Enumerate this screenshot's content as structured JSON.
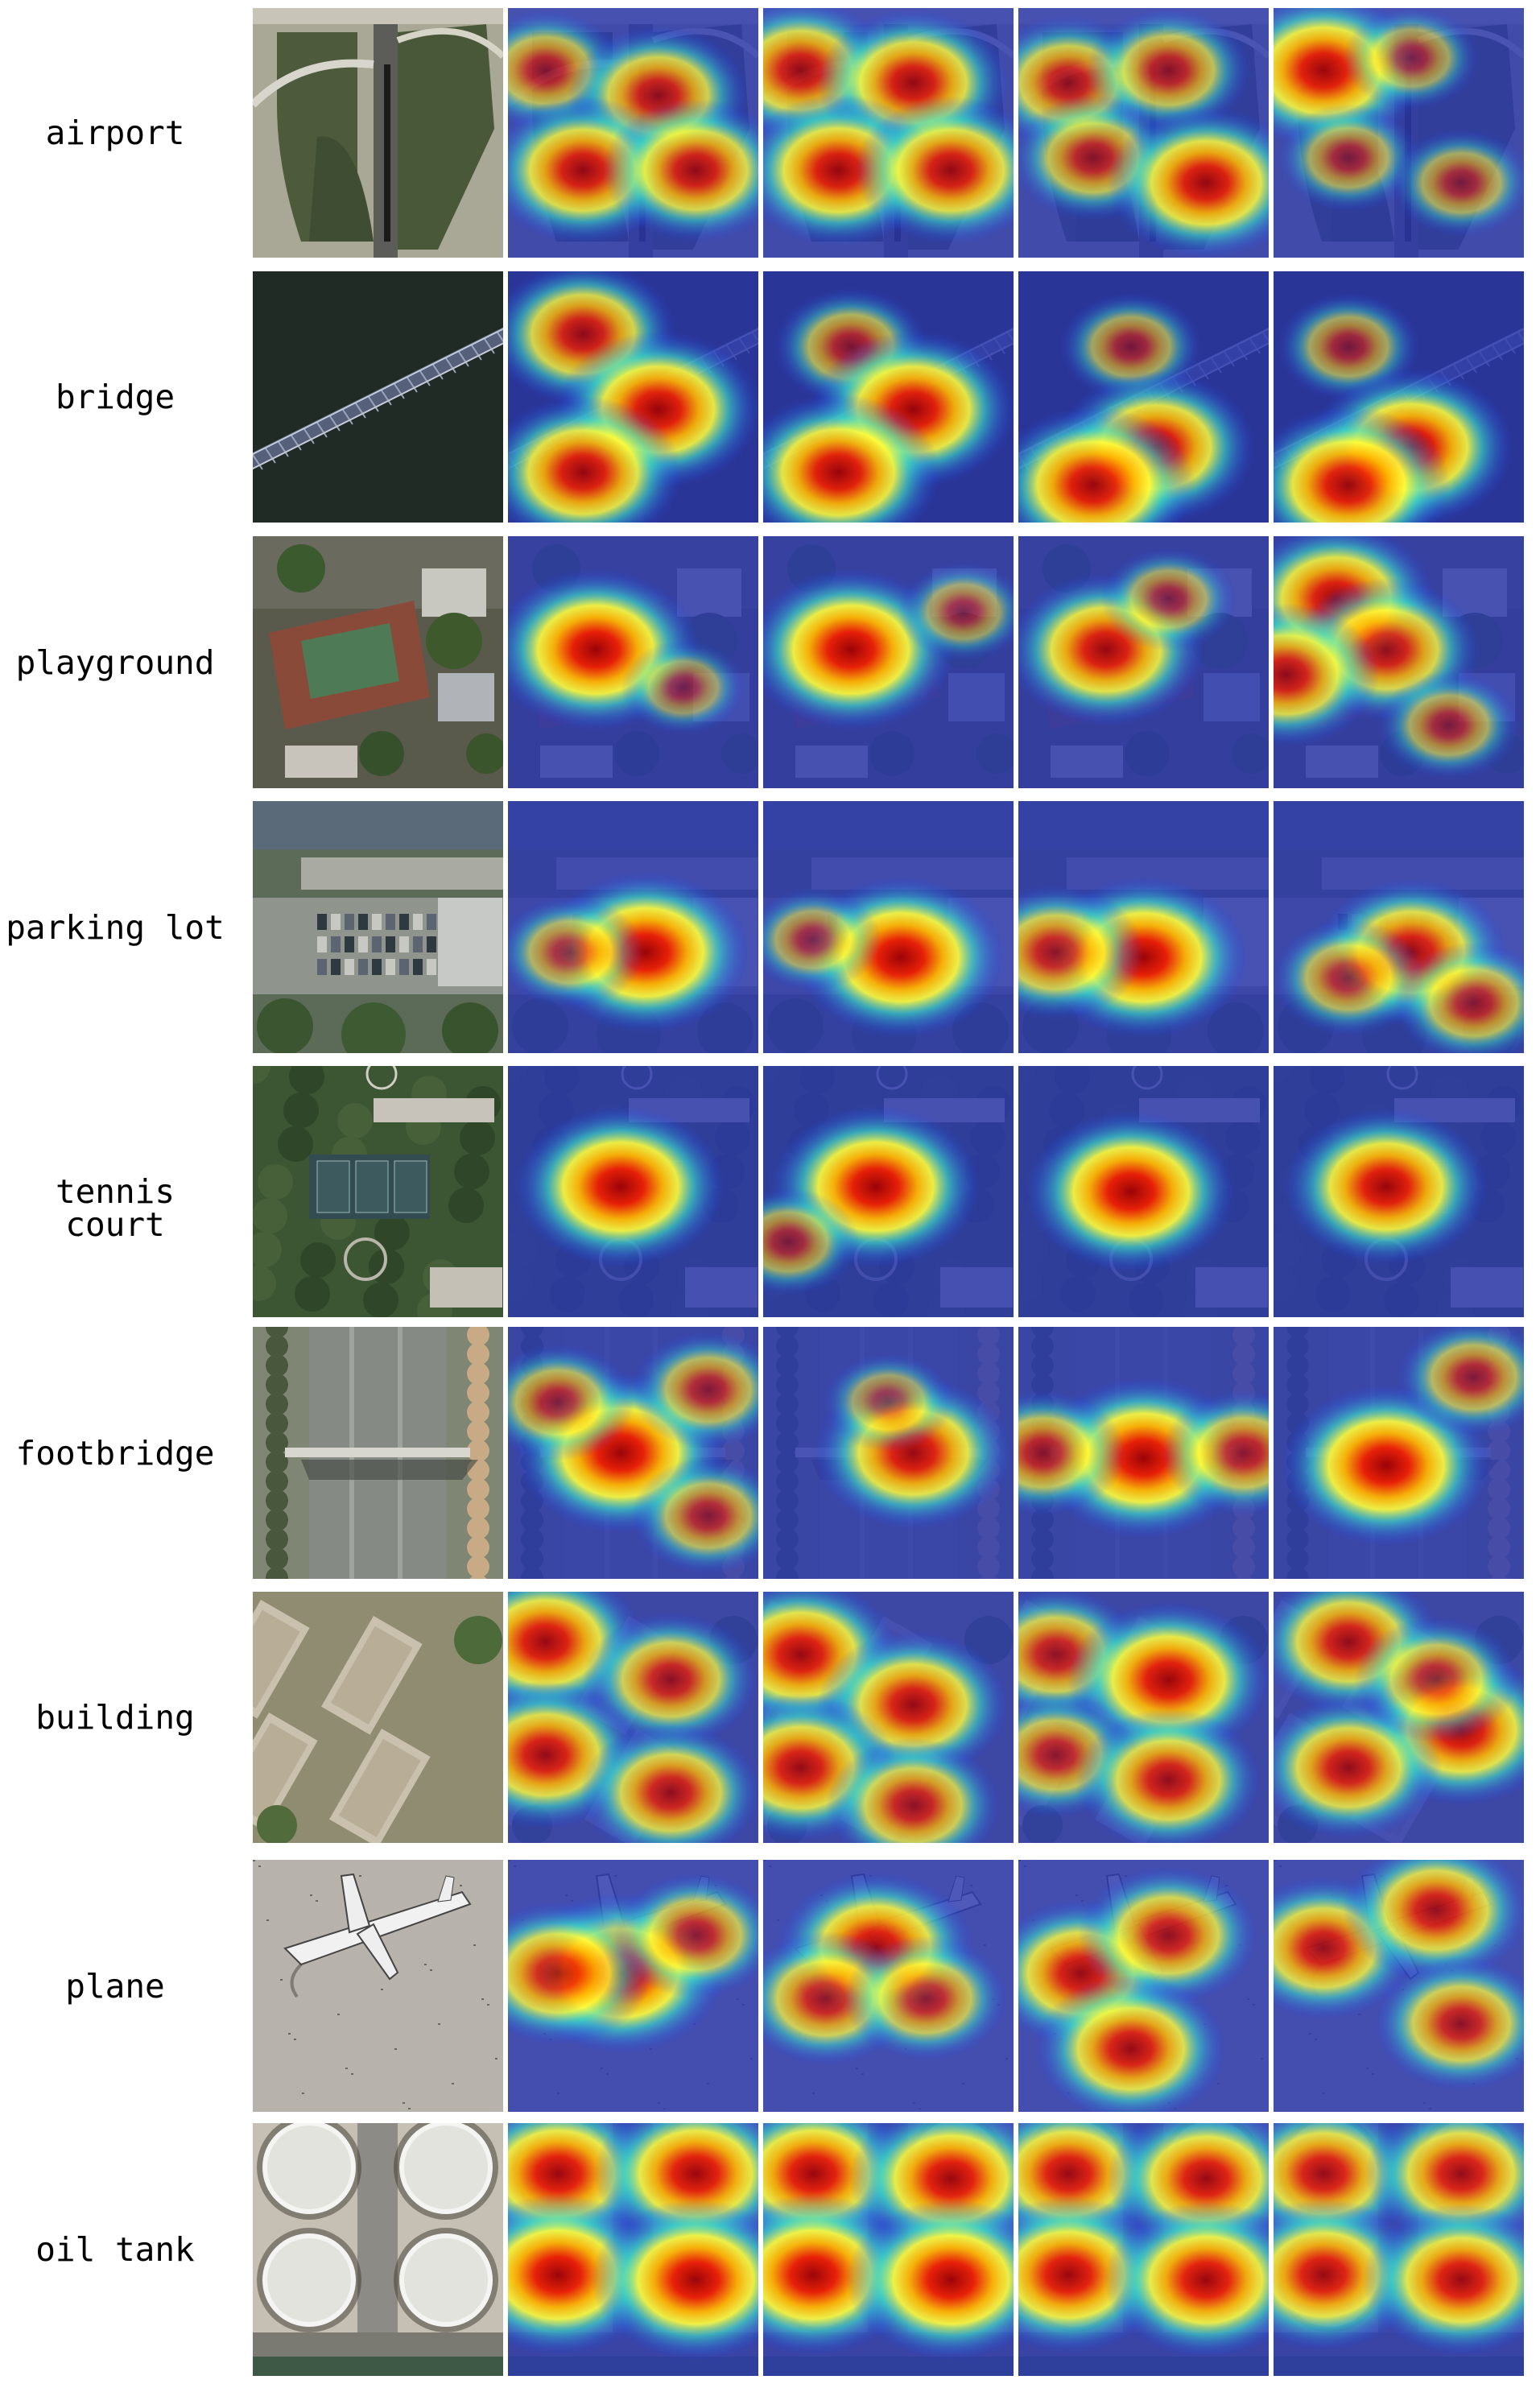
{
  "figure": {
    "rows": [
      {
        "id": "airport",
        "label": "airport",
        "scene": "airport",
        "heat": [
          [
            [
              0.15,
              0.25,
              0.55
            ],
            [
              0.6,
              0.35,
              0.75
            ],
            [
              0.3,
              0.65,
              0.85
            ],
            [
              0.75,
              0.65,
              0.8
            ]
          ],
          [
            [
              0.15,
              0.25,
              0.8
            ],
            [
              0.6,
              0.3,
              0.85
            ],
            [
              0.3,
              0.65,
              0.9
            ],
            [
              0.75,
              0.65,
              0.85
            ]
          ],
          [
            [
              0.2,
              0.3,
              0.7
            ],
            [
              0.6,
              0.25,
              0.6
            ],
            [
              0.3,
              0.6,
              0.6
            ],
            [
              0.75,
              0.7,
              0.9
            ]
          ],
          [
            [
              0.2,
              0.25,
              0.95
            ],
            [
              0.55,
              0.2,
              0.35
            ],
            [
              0.3,
              0.6,
              0.4
            ],
            [
              0.75,
              0.7,
              0.4
            ]
          ]
        ]
      },
      {
        "id": "bridge",
        "label": "bridge",
        "scene": "bridge",
        "heat": [
          [
            [
              0.3,
              0.25,
              0.8
            ],
            [
              0.6,
              0.55,
              0.95
            ],
            [
              0.3,
              0.8,
              0.9
            ]
          ],
          [
            [
              0.35,
              0.3,
              0.5
            ],
            [
              0.6,
              0.55,
              0.95
            ],
            [
              0.3,
              0.8,
              0.95
            ]
          ],
          [
            [
              0.45,
              0.3,
              0.4
            ],
            [
              0.55,
              0.7,
              0.9
            ],
            [
              0.3,
              0.85,
              0.95
            ]
          ],
          [
            [
              0.3,
              0.3,
              0.4
            ],
            [
              0.55,
              0.7,
              0.95
            ],
            [
              0.3,
              0.85,
              0.95
            ]
          ]
        ]
      },
      {
        "id": "playground",
        "label": "playground",
        "scene": "playground",
        "heat": [
          [
            [
              0.35,
              0.45,
              1.0
            ],
            [
              0.7,
              0.6,
              0.25
            ]
          ],
          [
            [
              0.35,
              0.45,
              1.0
            ],
            [
              0.8,
              0.3,
              0.3
            ]
          ],
          [
            [
              0.35,
              0.45,
              0.9
            ],
            [
              0.6,
              0.25,
              0.35
            ]
          ],
          [
            [
              0.25,
              0.25,
              0.9
            ],
            [
              0.45,
              0.45,
              0.8
            ],
            [
              0.05,
              0.55,
              0.8
            ],
            [
              0.7,
              0.75,
              0.4
            ]
          ]
        ]
      },
      {
        "id": "parking-lot",
        "label": "parking lot",
        "scene": "parking",
        "heat": [
          [
            [
              0.55,
              0.6,
              1.0
            ],
            [
              0.25,
              0.6,
              0.45
            ]
          ],
          [
            [
              0.55,
              0.62,
              1.0
            ],
            [
              0.2,
              0.55,
              0.35
            ]
          ],
          [
            [
              0.5,
              0.62,
              1.0
            ],
            [
              0.15,
              0.6,
              0.7
            ]
          ],
          [
            [
              0.55,
              0.6,
              0.85
            ],
            [
              0.3,
              0.7,
              0.5
            ],
            [
              0.8,
              0.8,
              0.55
            ]
          ]
        ]
      },
      {
        "id": "tennis-court",
        "label": "tennis court",
        "scene": "tennis",
        "heat": [
          [
            [
              0.45,
              0.48,
              1.0
            ]
          ],
          [
            [
              0.45,
              0.48,
              1.0
            ],
            [
              0.1,
              0.7,
              0.4
            ]
          ],
          [
            [
              0.45,
              0.5,
              1.0
            ]
          ],
          [
            [
              0.45,
              0.48,
              0.95
            ]
          ]
        ]
      },
      {
        "id": "footbridge",
        "label": "footbridge",
        "scene": "footbridge",
        "heat": [
          [
            [
              0.45,
              0.5,
              1.0
            ],
            [
              0.2,
              0.3,
              0.5
            ],
            [
              0.8,
              0.25,
              0.5
            ],
            [
              0.8,
              0.75,
              0.5
            ]
          ],
          [
            [
              0.6,
              0.5,
              0.9
            ],
            [
              0.5,
              0.3,
              0.3
            ]
          ],
          [
            [
              0.5,
              0.52,
              1.0
            ],
            [
              0.1,
              0.5,
              0.6
            ],
            [
              0.9,
              0.5,
              0.6
            ]
          ],
          [
            [
              0.45,
              0.55,
              1.0
            ],
            [
              0.8,
              0.2,
              0.5
            ]
          ]
        ]
      },
      {
        "id": "building",
        "label": "building",
        "scene": "building",
        "heat": [
          [
            [
              0.15,
              0.2,
              0.9
            ],
            [
              0.65,
              0.35,
              0.7
            ],
            [
              0.15,
              0.65,
              0.85
            ],
            [
              0.65,
              0.8,
              0.75
            ]
          ],
          [
            [
              0.15,
              0.25,
              0.9
            ],
            [
              0.6,
              0.45,
              0.85
            ],
            [
              0.15,
              0.7,
              0.85
            ],
            [
              0.6,
              0.85,
              0.7
            ]
          ],
          [
            [
              0.15,
              0.25,
              0.7
            ],
            [
              0.6,
              0.35,
              0.95
            ],
            [
              0.15,
              0.65,
              0.6
            ],
            [
              0.6,
              0.75,
              0.8
            ]
          ],
          [
            [
              0.3,
              0.2,
              0.8
            ],
            [
              0.75,
              0.55,
              0.9
            ],
            [
              0.3,
              0.7,
              0.8
            ],
            [
              0.65,
              0.35,
              0.6
            ]
          ]
        ]
      },
      {
        "id": "plane",
        "label": "plane",
        "scene": "plane",
        "heat": [
          [
            [
              0.45,
              0.45,
              1.0
            ],
            [
              0.2,
              0.45,
              0.8
            ],
            [
              0.75,
              0.3,
              0.6
            ]
          ],
          [
            [
              0.45,
              0.35,
              0.9
            ],
            [
              0.25,
              0.55,
              0.7
            ],
            [
              0.65,
              0.55,
              0.6
            ]
          ],
          [
            [
              0.25,
              0.45,
              0.85
            ],
            [
              0.6,
              0.3,
              0.75
            ],
            [
              0.45,
              0.75,
              0.85
            ]
          ],
          [
            [
              0.2,
              0.35,
              0.8
            ],
            [
              0.65,
              0.2,
              0.8
            ],
            [
              0.75,
              0.65,
              0.7
            ]
          ]
        ]
      },
      {
        "id": "oil-tank",
        "label": "oil tank",
        "scene": "oiltank",
        "heat": [
          [
            [
              0.2,
              0.2,
              0.95
            ],
            [
              0.75,
              0.2,
              0.95
            ],
            [
              0.2,
              0.6,
              1.0
            ],
            [
              0.75,
              0.62,
              1.0
            ]
          ],
          [
            [
              0.2,
              0.2,
              0.95
            ],
            [
              0.75,
              0.22,
              0.95
            ],
            [
              0.2,
              0.6,
              1.0
            ],
            [
              0.75,
              0.62,
              1.0
            ]
          ],
          [
            [
              0.2,
              0.2,
              0.9
            ],
            [
              0.75,
              0.22,
              0.9
            ],
            [
              0.2,
              0.6,
              0.95
            ],
            [
              0.75,
              0.62,
              0.95
            ]
          ],
          [
            [
              0.2,
              0.2,
              0.85
            ],
            [
              0.75,
              0.2,
              0.85
            ],
            [
              0.2,
              0.6,
              0.9
            ],
            [
              0.75,
              0.62,
              0.9
            ]
          ]
        ]
      }
    ]
  }
}
